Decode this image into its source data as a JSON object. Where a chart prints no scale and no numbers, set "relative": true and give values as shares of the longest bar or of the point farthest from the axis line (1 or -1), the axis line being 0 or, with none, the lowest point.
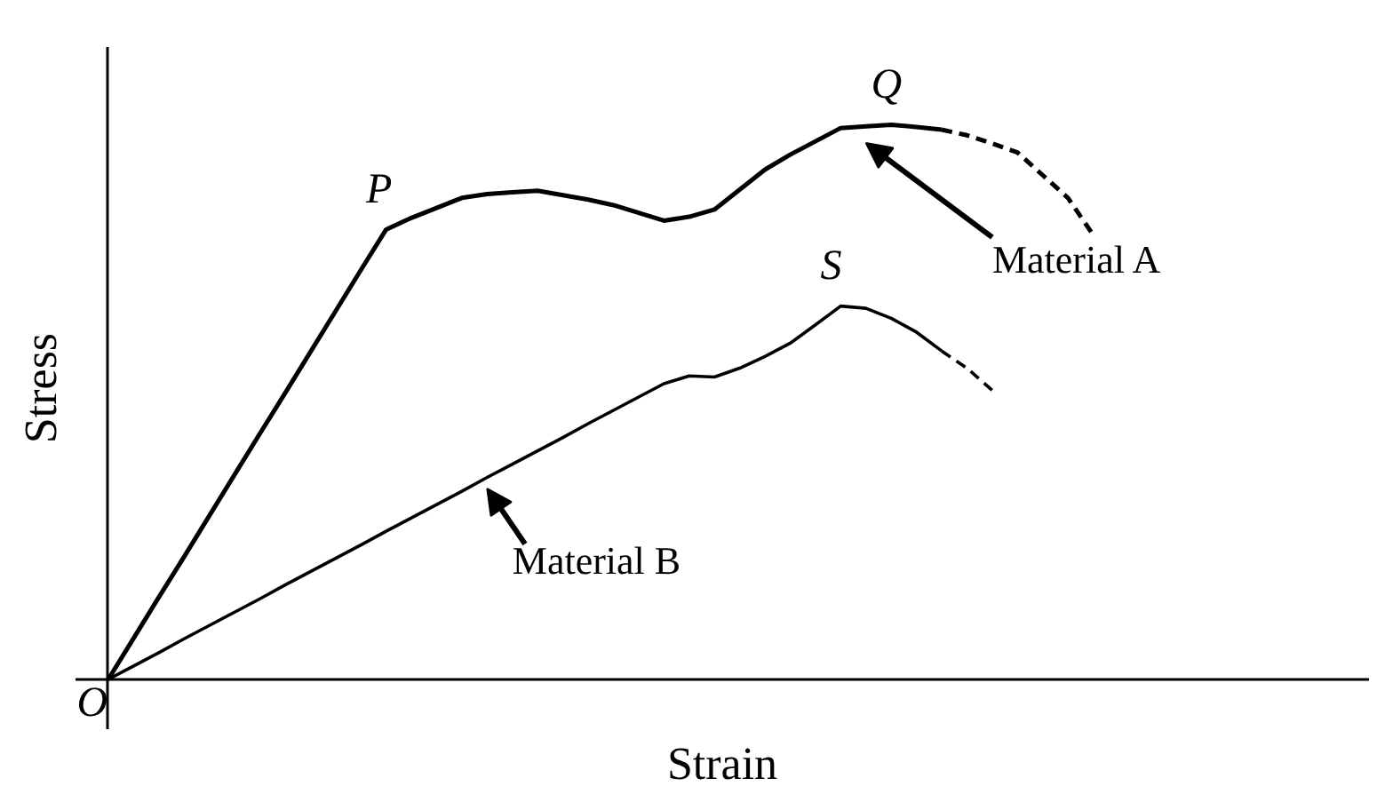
{
  "chart_data": {
    "type": "line",
    "relative": true,
    "xlabel": "Strain",
    "ylabel": "Stress",
    "marker": "none",
    "grid": false,
    "categories": [
      null,
      null,
      null,
      null,
      null,
      null,
      null,
      null,
      null,
      null,
      null,
      null,
      null,
      null,
      null,
      null,
      null,
      null,
      null,
      null,
      null,
      null,
      null,
      null,
      null,
      null,
      null,
      null,
      null,
      null,
      null,
      null,
      null,
      null,
      null,
      null,
      null,
      null,
      null,
      null
    ],
    "series": [
      {
        "name": "Material A",
        "color": "#000000",
        "line_style": "solid",
        "values": [
          0,
          0.074,
          0.148,
          0.221,
          0.295,
          0.369,
          0.443,
          0.516,
          0.59,
          0.664,
          0.738,
          0.811,
          0.832,
          0.85,
          0.868,
          0.875,
          0.878,
          0.881,
          0.873,
          0.865,
          0.855,
          0.841,
          0.827,
          0.834,
          0.847,
          0.883,
          0.919,
          0.946,
          0.97,
          0.994,
          0.997,
          1.0,
          0.996,
          0.991,
          null,
          null,
          null,
          null,
          null,
          null
        ]
      },
      {
        "color": "#000000",
        "line_style": "dashed",
        "values": [
          null,
          null,
          null,
          null,
          null,
          null,
          null,
          null,
          null,
          null,
          null,
          null,
          null,
          null,
          null,
          null,
          null,
          null,
          null,
          null,
          null,
          null,
          null,
          null,
          null,
          null,
          null,
          null,
          null,
          null,
          null,
          null,
          null,
          0.991,
          0.981,
          0.966,
          0.95,
          0.909,
          0.868,
          0.801
        ]
      },
      {
        "name": "Material B",
        "color": "#000000",
        "line_style": "solid",
        "values": [
          0,
          0.024,
          0.048,
          0.073,
          0.097,
          0.121,
          0.145,
          0.17,
          0.194,
          0.218,
          0.242,
          0.267,
          0.291,
          0.315,
          0.339,
          0.364,
          0.388,
          0.412,
          0.436,
          0.461,
          0.485,
          0.509,
          0.533,
          0.547,
          0.545,
          0.561,
          0.582,
          0.606,
          0.639,
          0.673,
          0.669,
          0.651,
          0.626,
          0.592,
          null,
          null,
          null,
          null,
          null,
          null
        ]
      },
      {
        "color": "#000000",
        "line_style": "dashed",
        "values": [
          null,
          null,
          null,
          null,
          null,
          null,
          null,
          null,
          null,
          null,
          null,
          null,
          null,
          null,
          null,
          null,
          null,
          null,
          null,
          null,
          null,
          null,
          null,
          null,
          null,
          null,
          null,
          null,
          null,
          null,
          null,
          null,
          null,
          0.592,
          0.561,
          0.521,
          null,
          null,
          null,
          null
        ]
      }
    ],
    "annotations": [
      "O",
      "P",
      "Q",
      "S"
    ]
  }
}
